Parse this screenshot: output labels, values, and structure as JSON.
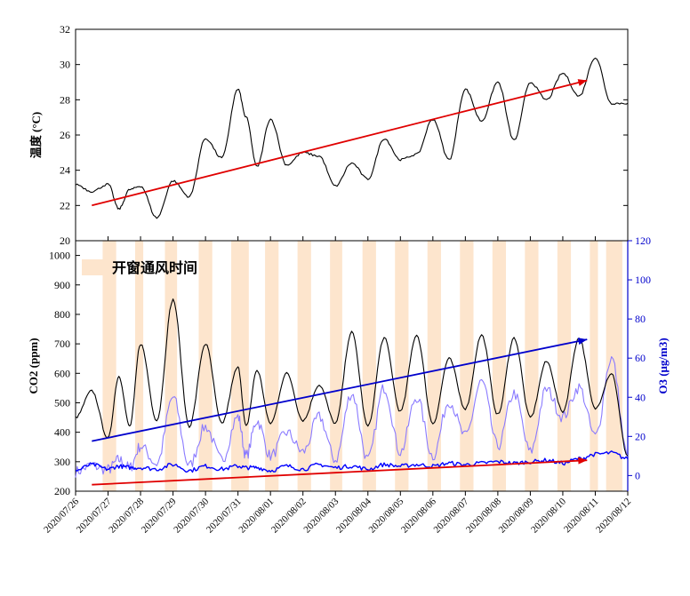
{
  "chart_data": [
    {
      "panel": "top",
      "type": "line",
      "ylabel": "温度 (°C)",
      "ylim": [
        20,
        32
      ],
      "yticks": [
        20,
        22,
        24,
        26,
        28,
        30,
        32
      ],
      "x": [
        "2020/07/26",
        "2020/07/26 12:00",
        "2020/07/27",
        "2020/07/27 08:00",
        "2020/07/27 16:00",
        "2020/07/28",
        "2020/07/28 12:00",
        "2020/07/29",
        "2020/07/29 12:00",
        "2020/07/30",
        "2020/07/30 12:00",
        "2020/07/31",
        "2020/07/31 06:00",
        "2020/07/31 14:00",
        "2020/08/01",
        "2020/08/01 12:00",
        "2020/08/02",
        "2020/08/02 12:00",
        "2020/08/03",
        "2020/08/03 12:00",
        "2020/08/04",
        "2020/08/04 12:00",
        "2020/08/05",
        "2020/08/05 12:00",
        "2020/08/06",
        "2020/08/06 12:00",
        "2020/08/07",
        "2020/08/07 12:00",
        "2020/08/08",
        "2020/08/08 12:00",
        "2020/08/09",
        "2020/08/09 12:00",
        "2020/08/10",
        "2020/08/10 12:00",
        "2020/08/11",
        "2020/08/11 12:00",
        "2020/08/12"
      ],
      "series": [
        {
          "color": "#000000",
          "values": [
            23.2,
            22.8,
            23.2,
            21.8,
            22.9,
            23.1,
            21.3,
            23.4,
            22.5,
            25.8,
            24.7,
            28.6,
            27.0,
            24.2,
            26.9,
            24.3,
            25.0,
            24.8,
            23.1,
            24.4,
            23.5,
            25.8,
            24.6,
            24.9,
            26.9,
            24.6,
            28.6,
            26.8,
            29.0,
            25.7,
            29.0,
            28.0,
            29.5,
            28.2,
            30.4,
            27.8,
            27.8
          ]
        },
        {
          "color": "#e00000",
          "name": "",
          "trend": true,
          "x": [
            "2020/07/26 12:00",
            "2020/08/10 18:00"
          ],
          "values": [
            22.0,
            29.1
          ]
        }
      ]
    },
    {
      "panel": "bottom",
      "type": "line",
      "ylabel": "CO2 (ppm)",
      "ylim": [
        200,
        1050
      ],
      "yticks": [
        200,
        300,
        400,
        500,
        600,
        700,
        800,
        900,
        1000
      ],
      "y2label": "O3 (μg/m3)",
      "y2lim": [
        -8,
        120
      ],
      "y2ticks": [
        0,
        20,
        40,
        60,
        80,
        100,
        120
      ],
      "legend": {
        "label": "开窗通风时间",
        "placement": "top-left",
        "color": "#fde5cd"
      },
      "shaded_periods": [
        [
          "2020/07/26 20:00",
          "2020/07/27 06:00"
        ],
        [
          "2020/07/27 20:00",
          "2020/07/28 02:00"
        ],
        [
          "2020/07/28 18:00",
          "2020/07/29 03:00"
        ],
        [
          "2020/07/29 19:00",
          "2020/07/30 05:00"
        ],
        [
          "2020/07/30 19:00",
          "2020/07/31 08:00"
        ],
        [
          "2020/07/31 20:00",
          "2020/08/01 06:00"
        ],
        [
          "2020/08/01 20:00",
          "2020/08/02 06:00"
        ],
        [
          "2020/08/02 20:00",
          "2020/08/03 05:00"
        ],
        [
          "2020/08/03 20:00",
          "2020/08/04 06:00"
        ],
        [
          "2020/08/04 20:00",
          "2020/08/05 06:00"
        ],
        [
          "2020/08/05 20:00",
          "2020/08/06 06:00"
        ],
        [
          "2020/08/06 20:00",
          "2020/08/07 06:00"
        ],
        [
          "2020/08/07 20:00",
          "2020/08/08 06:00"
        ],
        [
          "2020/08/08 20:00",
          "2020/08/09 06:00"
        ],
        [
          "2020/08/09 20:00",
          "2020/08/10 06:00"
        ],
        [
          "2020/08/10 20:00",
          "2020/08/11 02:00"
        ],
        [
          "2020/08/11 08:00",
          "2020/08/11 20:00"
        ]
      ],
      "x": [
        "2020/07/26",
        "2020/07/26 12:00",
        "2020/07/27",
        "2020/07/27 08:00",
        "2020/07/27 16:00",
        "2020/07/28",
        "2020/07/28 12:00",
        "2020/07/29",
        "2020/07/29 12:00",
        "2020/07/30",
        "2020/07/30 12:00",
        "2020/07/31",
        "2020/07/31 06:00",
        "2020/07/31 14:00",
        "2020/08/01",
        "2020/08/01 12:00",
        "2020/08/02",
        "2020/08/02 12:00",
        "2020/08/03",
        "2020/08/03 12:00",
        "2020/08/04",
        "2020/08/04 12:00",
        "2020/08/05",
        "2020/08/05 12:00",
        "2020/08/06",
        "2020/08/06 12:00",
        "2020/08/07",
        "2020/08/07 12:00",
        "2020/08/08",
        "2020/08/08 12:00",
        "2020/08/09",
        "2020/08/09 12:00",
        "2020/08/10",
        "2020/08/10 12:00",
        "2020/08/11",
        "2020/08/11 12:00",
        "2020/08/12"
      ],
      "series": [
        {
          "color": "#000000",
          "axis": "left",
          "values": [
            450,
            540,
            380,
            590,
            420,
            700,
            440,
            850,
            420,
            700,
            430,
            620,
            420,
            610,
            430,
            600,
            440,
            560,
            430,
            740,
            420,
            720,
            470,
            730,
            430,
            650,
            480,
            730,
            460,
            720,
            450,
            640,
            470,
            720,
            480,
            600,
            320
          ]
        },
        {
          "color": "#0000ff",
          "axis": "left",
          "values": [
            270,
            290,
            275,
            285,
            280,
            280,
            275,
            290,
            270,
            285,
            275,
            285,
            280,
            280,
            270,
            285,
            275,
            290,
            280,
            285,
            275,
            290,
            285,
            290,
            285,
            295,
            290,
            295,
            300,
            295,
            300,
            305,
            295,
            310,
            325,
            330,
            310
          ]
        },
        {
          "color": "#8a7aff",
          "axis": "right",
          "values": [
            2,
            5,
            3,
            8,
            4,
            15,
            6,
            40,
            5,
            25,
            8,
            30,
            10,
            28,
            10,
            22,
            12,
            30,
            8,
            42,
            8,
            45,
            12,
            40,
            10,
            38,
            20,
            48,
            15,
            42,
            12,
            44,
            30,
            45,
            20,
            60,
            10
          ]
        },
        {
          "color": "#0000cc",
          "trend": true,
          "axis": "left",
          "x": [
            "2020/07/26 12:00",
            "2020/08/10 18:00"
          ],
          "values": [
            370,
            715
          ]
        },
        {
          "color": "#e00000",
          "trend": true,
          "axis": "left",
          "x": [
            "2020/07/26 12:00",
            "2020/08/10 18:00"
          ],
          "values": [
            222,
            305
          ]
        }
      ]
    }
  ],
  "x_axis": {
    "ticks": [
      "2020/07/26",
      "2020/07/27",
      "2020/07/28",
      "2020/07/29",
      "2020/07/30",
      "2020/07/31",
      "2020/08/01",
      "2020/08/02",
      "2020/08/03",
      "2020/08/04",
      "2020/08/05",
      "2020/08/06",
      "2020/08/07",
      "2020/08/08",
      "2020/08/09",
      "2020/08/10",
      "2020/08/11",
      "2020/08/12"
    ]
  }
}
